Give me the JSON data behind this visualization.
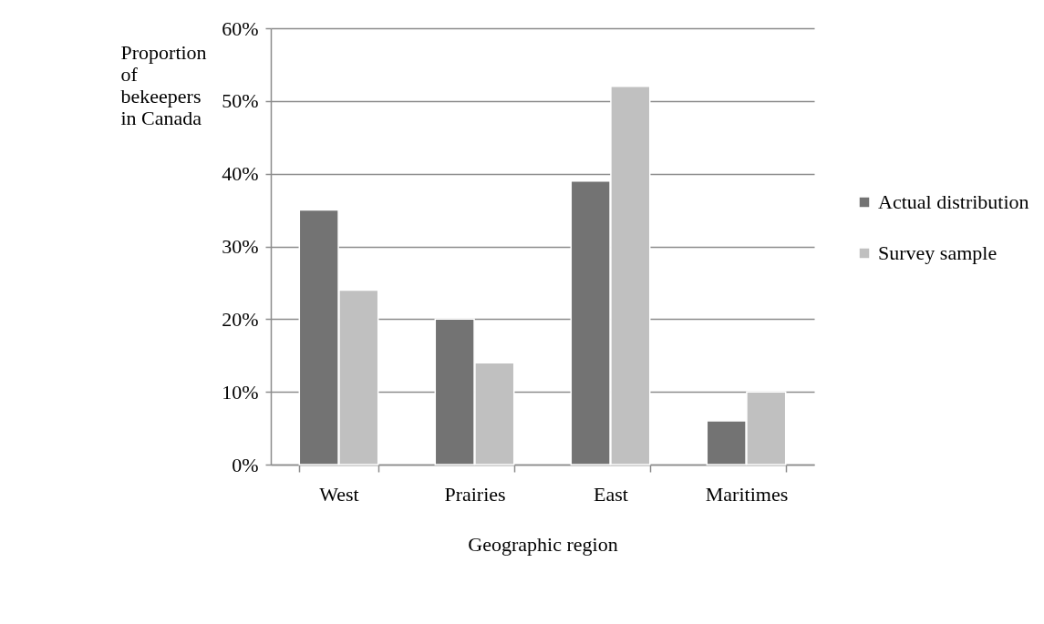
{
  "chart_data": {
    "type": "bar",
    "xlabel": "Geographic region",
    "ylabel": "Proportion of bekeepers in Canada",
    "categories": [
      "West",
      "Prairies",
      "East",
      "Maritimes"
    ],
    "series": [
      {
        "name": "Actual distribution",
        "color": "#737373",
        "values": [
          35,
          20,
          39,
          6
        ]
      },
      {
        "name": "Survey sample",
        "color": "#c0c0c0",
        "values": [
          24,
          14,
          52,
          10
        ]
      }
    ],
    "ylim": [
      0,
      60
    ],
    "yticks": [
      {
        "value": 0,
        "label": "0%"
      },
      {
        "value": 10,
        "label": "10%"
      },
      {
        "value": 20,
        "label": "20%"
      },
      {
        "value": 30,
        "label": "30%"
      },
      {
        "value": 40,
        "label": "40%"
      },
      {
        "value": 50,
        "label": "50%"
      },
      {
        "value": 60,
        "label": "60%"
      }
    ],
    "grid": "y",
    "legend": "right"
  }
}
